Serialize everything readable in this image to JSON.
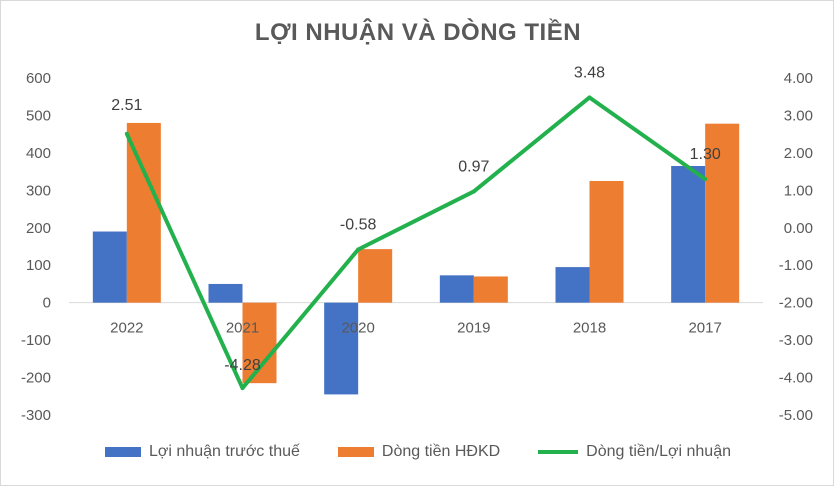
{
  "chart_data": {
    "type": "bar",
    "title": "LỢI NHUẬN VÀ DÒNG TIỀN",
    "categories": [
      "2022",
      "2021",
      "2020",
      "2019",
      "2018",
      "2017"
    ],
    "series": [
      {
        "name": "Lợi nhuận trước thuế",
        "type": "bar",
        "axis": "left",
        "color": "#4472c4",
        "values": [
          190,
          50,
          -245,
          73,
          95,
          365
        ]
      },
      {
        "name": "Dòng tiền HĐKD",
        "type": "bar",
        "axis": "left",
        "color": "#ed7d31",
        "values": [
          480,
          -215,
          143,
          70,
          325,
          478
        ]
      },
      {
        "name": "Dòng tiền/Lợi nhuận",
        "type": "line",
        "axis": "right",
        "color": "#22b14c",
        "values": [
          2.51,
          -4.28,
          -0.58,
          0.97,
          3.48,
          1.3
        ],
        "labels": [
          "2.51",
          "-4.28",
          "-0.58",
          "0.97",
          "3.48",
          "1.30"
        ]
      }
    ],
    "left_axis": {
      "min": -300,
      "max": 600,
      "ticks": [
        "600",
        "500",
        "400",
        "300",
        "200",
        "100",
        "0",
        "-100",
        "-200",
        "-300"
      ]
    },
    "right_axis": {
      "min": -5,
      "max": 4,
      "ticks": [
        "4.00",
        "3.00",
        "2.00",
        "1.00",
        "0.00",
        "-1.00",
        "-2.00",
        "-3.00",
        "-4.00",
        "-5.00"
      ]
    },
    "legend": "bottom",
    "grid": false
  }
}
